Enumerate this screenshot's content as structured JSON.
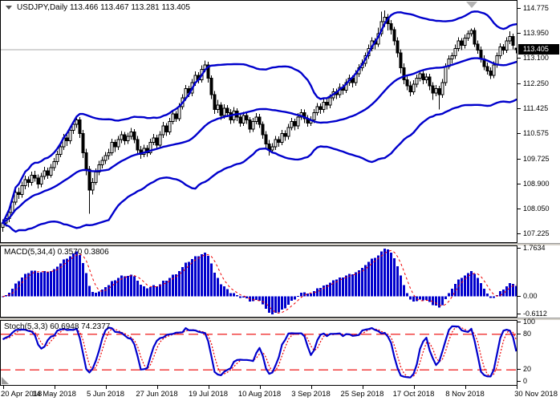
{
  "window": {
    "title": "USDJPY,Daily 113.466 113.467 113.281 113.405",
    "symbol": "USDJPY",
    "timeframe": "Daily",
    "ohlc_display": {
      "open": "113.466",
      "high": "113.467",
      "low": "113.281",
      "close": "113.405"
    }
  },
  "main_chart": {
    "price_axis": {
      "labels": [
        "114.775",
        "113.950",
        "113.100",
        "112.250",
        "111.425",
        "110.575",
        "109.725",
        "108.900",
        "108.050",
        "107.225"
      ],
      "current": "113.405",
      "current_value": 113.405,
      "top_value": 115.05,
      "bottom_value": 106.95
    },
    "colors": {
      "bollinger": "#0000cc",
      "bull_body": "#ffffff",
      "bear_body": "#000000",
      "outline": "#000000",
      "price_line": "#a8a8a8"
    }
  },
  "indicators": {
    "macd": {
      "label": "MACD(5,34,4) 0.3570 0.3806",
      "fast": 5,
      "slow": 34,
      "signal": 4,
      "axis_labels": {
        "max": "1.7634",
        "zero": "0.00",
        "min": "-0.6112"
      },
      "histogram_color": "#0000cc",
      "signal_color": "#ee0000"
    },
    "stoch": {
      "label": "Stoch(5,3,3) 60.6948 74.2377",
      "k_period": 5,
      "slowing": 3,
      "d_period": 3,
      "axis_labels": [
        {
          "text": "100",
          "value": 100
        },
        {
          "text": "80",
          "value": 80
        },
        {
          "text": "20",
          "value": 20
        },
        {
          "text": "0",
          "value": 0
        }
      ],
      "levels": [
        80,
        20
      ],
      "k_color": "#0000cc",
      "d_color": "#ee0000",
      "level_color": "#ee0000"
    }
  },
  "time_axis": {
    "labels": [
      "20 Apr 2018",
      "14 May 2018",
      "5 Jun 2018",
      "27 Jun 2018",
      "19 Jul 2018",
      "10 Aug 2018",
      "3 Sep 2018",
      "25 Sep 2018",
      "17 Oct 2018",
      "8 Nov 2018",
      "30 Nov 2018"
    ],
    "tick_indices": [
      0,
      16,
      32,
      48,
      64,
      80,
      96,
      112,
      128,
      144,
      160
    ]
  },
  "chart_data": {
    "type": "candlestick",
    "title": "USDJPY,Daily 113.466 113.467 113.281 113.405",
    "symbol": "USDJPY",
    "timeframe": "Daily",
    "ylim": [
      106.95,
      115.05
    ],
    "x_tick_labels": [
      "20 Apr 2018",
      "14 May 2018",
      "5 Jun 2018",
      "27 Jun 2018",
      "19 Jul 2018",
      "10 Aug 2018",
      "3 Sep 2018",
      "25 Sep 2018",
      "17 Oct 2018",
      "8 Nov 2018",
      "30 Nov 2018"
    ],
    "overlays": [
      {
        "name": "Bollinger Bands",
        "period": 34,
        "deviation": 2,
        "color": "#0000cc"
      }
    ],
    "panels": [
      {
        "name": "MACD",
        "type": "macd",
        "params": [
          5,
          34,
          4
        ],
        "current_values": [
          "0.3570",
          "0.3806"
        ],
        "axis": [
          1.7634,
          0.0,
          -0.6112
        ]
      },
      {
        "name": "Stochastic",
        "type": "stochastic",
        "params": [
          5,
          3,
          3
        ],
        "current_values": [
          "60.6948",
          "74.2377"
        ],
        "axis": [
          100,
          80,
          20,
          0
        ],
        "levels": [
          80,
          20
        ]
      }
    ],
    "candles_ohlc": [
      [
        107.45,
        107.72,
        107.3,
        107.6
      ],
      [
        107.6,
        107.88,
        107.48,
        107.75
      ],
      [
        107.75,
        108.1,
        107.62,
        107.95
      ],
      [
        107.95,
        108.42,
        107.85,
        108.3
      ],
      [
        108.3,
        108.75,
        108.2,
        108.62
      ],
      [
        108.62,
        108.78,
        108.4,
        108.55
      ],
      [
        108.55,
        108.98,
        108.45,
        108.85
      ],
      [
        108.85,
        109.18,
        108.72,
        109.05
      ],
      [
        109.05,
        109.15,
        108.8,
        108.95
      ],
      [
        108.95,
        109.32,
        108.85,
        109.2
      ],
      [
        109.2,
        109.35,
        108.98,
        109.1
      ],
      [
        109.1,
        109.22,
        108.75,
        108.9
      ],
      [
        108.9,
        109.28,
        108.8,
        109.15
      ],
      [
        109.15,
        109.48,
        109.05,
        109.35
      ],
      [
        109.35,
        109.45,
        109.08,
        109.2
      ],
      [
        109.2,
        109.58,
        109.12,
        109.45
      ],
      [
        109.45,
        109.78,
        109.35,
        109.65
      ],
      [
        109.65,
        110.02,
        109.55,
        109.9
      ],
      [
        109.9,
        110.28,
        109.8,
        110.15
      ],
      [
        110.15,
        110.58,
        110.05,
        110.45
      ],
      [
        110.45,
        110.55,
        110.18,
        110.35
      ],
      [
        110.35,
        110.82,
        110.25,
        110.7
      ],
      [
        110.7,
        111.02,
        110.58,
        110.9
      ],
      [
        110.9,
        111.18,
        110.78,
        111.05
      ],
      [
        111.05,
        111.15,
        110.45,
        110.6
      ],
      [
        110.6,
        110.72,
        109.78,
        109.95
      ],
      [
        109.95,
        110.08,
        109.2,
        109.4
      ],
      [
        109.4,
        109.5,
        107.9,
        108.7
      ],
      [
        108.7,
        109.1,
        108.55,
        108.95
      ],
      [
        108.95,
        109.42,
        108.88,
        109.3
      ],
      [
        109.3,
        109.68,
        109.2,
        109.55
      ],
      [
        109.55,
        109.82,
        109.42,
        109.7
      ],
      [
        109.7,
        109.98,
        109.58,
        109.85
      ],
      [
        109.85,
        110.08,
        109.72,
        109.95
      ],
      [
        109.95,
        110.42,
        109.85,
        110.3
      ],
      [
        110.3,
        110.4,
        109.98,
        110.15
      ],
      [
        110.15,
        110.52,
        110.05,
        110.4
      ],
      [
        110.4,
        110.68,
        110.28,
        110.55
      ],
      [
        110.55,
        110.65,
        110.22,
        110.35
      ],
      [
        110.35,
        110.62,
        110.25,
        110.5
      ],
      [
        110.5,
        110.78,
        110.4,
        110.65
      ],
      [
        110.65,
        110.75,
        110.28,
        110.4
      ],
      [
        110.4,
        110.52,
        109.92,
        110.05
      ],
      [
        110.05,
        110.18,
        109.75,
        109.9
      ],
      [
        109.9,
        110.22,
        109.8,
        110.1
      ],
      [
        110.1,
        110.2,
        109.82,
        109.95
      ],
      [
        109.95,
        110.42,
        109.88,
        110.3
      ],
      [
        110.3,
        110.58,
        110.2,
        110.45
      ],
      [
        110.45,
        110.55,
        110.08,
        110.2
      ],
      [
        110.2,
        110.68,
        110.1,
        110.55
      ],
      [
        110.55,
        110.98,
        110.45,
        110.85
      ],
      [
        110.85,
        110.95,
        110.52,
        110.65
      ],
      [
        110.65,
        111.12,
        110.55,
        111.0
      ],
      [
        111.0,
        111.38,
        110.9,
        111.25
      ],
      [
        111.25,
        111.35,
        110.98,
        111.1
      ],
      [
        111.1,
        111.62,
        111.02,
        111.5
      ],
      [
        111.5,
        111.92,
        111.4,
        111.8
      ],
      [
        111.8,
        112.22,
        111.7,
        112.1
      ],
      [
        112.1,
        112.2,
        111.82,
        111.95
      ],
      [
        111.95,
        112.42,
        111.85,
        112.3
      ],
      [
        112.3,
        112.68,
        112.2,
        112.55
      ],
      [
        112.55,
        112.65,
        112.28,
        112.4
      ],
      [
        112.4,
        112.88,
        112.3,
        112.75
      ],
      [
        112.75,
        113.05,
        112.65,
        112.9
      ],
      [
        112.9,
        113.0,
        112.3,
        112.45
      ],
      [
        112.45,
        112.55,
        111.75,
        111.9
      ],
      [
        111.9,
        112.02,
        111.25,
        111.4
      ],
      [
        111.4,
        111.72,
        111.28,
        111.55
      ],
      [
        111.55,
        111.65,
        111.05,
        111.2
      ],
      [
        111.2,
        111.58,
        111.1,
        111.45
      ],
      [
        111.45,
        111.55,
        111.15,
        111.3
      ],
      [
        111.3,
        111.42,
        110.92,
        111.05
      ],
      [
        111.05,
        111.48,
        110.95,
        111.35
      ],
      [
        111.35,
        111.45,
        111.02,
        111.15
      ],
      [
        111.15,
        111.25,
        110.82,
        110.95
      ],
      [
        110.95,
        111.32,
        110.85,
        111.2
      ],
      [
        111.2,
        111.3,
        110.92,
        111.05
      ],
      [
        111.05,
        111.15,
        110.62,
        110.75
      ],
      [
        110.75,
        111.12,
        110.65,
        111.0
      ],
      [
        111.0,
        111.28,
        110.9,
        111.15
      ],
      [
        111.15,
        111.25,
        110.78,
        110.9
      ],
      [
        110.9,
        111.0,
        110.42,
        110.55
      ],
      [
        110.55,
        110.68,
        110.12,
        110.25
      ],
      [
        110.25,
        110.38,
        109.85,
        110.05
      ],
      [
        110.05,
        110.28,
        109.95,
        110.15
      ],
      [
        110.15,
        110.52,
        110.05,
        110.4
      ],
      [
        110.4,
        110.5,
        110.15,
        110.3
      ],
      [
        110.3,
        110.72,
        110.2,
        110.6
      ],
      [
        110.6,
        110.7,
        110.35,
        110.5
      ],
      [
        110.5,
        110.92,
        110.4,
        110.8
      ],
      [
        110.8,
        111.12,
        110.7,
        111.0
      ],
      [
        111.0,
        111.1,
        110.7,
        110.85
      ],
      [
        110.85,
        111.28,
        110.75,
        111.15
      ],
      [
        111.15,
        111.42,
        111.05,
        111.3
      ],
      [
        111.3,
        111.4,
        110.95,
        111.1
      ],
      [
        111.1,
        111.22,
        110.82,
        110.95
      ],
      [
        110.95,
        111.18,
        110.85,
        111.05
      ],
      [
        111.05,
        111.42,
        110.95,
        111.3
      ],
      [
        111.3,
        111.62,
        111.2,
        111.5
      ],
      [
        111.5,
        111.6,
        111.25,
        111.4
      ],
      [
        111.4,
        111.78,
        111.3,
        111.65
      ],
      [
        111.65,
        111.75,
        111.4,
        111.55
      ],
      [
        111.55,
        111.92,
        111.45,
        111.8
      ],
      [
        111.8,
        112.12,
        111.7,
        112.0
      ],
      [
        112.0,
        112.1,
        111.75,
        111.9
      ],
      [
        111.9,
        112.28,
        111.8,
        112.15
      ],
      [
        112.15,
        112.25,
        111.9,
        112.05
      ],
      [
        112.05,
        112.42,
        111.95,
        112.3
      ],
      [
        112.3,
        112.58,
        112.2,
        112.45
      ],
      [
        112.45,
        112.55,
        112.15,
        112.3
      ],
      [
        112.3,
        112.72,
        112.2,
        112.6
      ],
      [
        112.6,
        112.92,
        112.5,
        112.8
      ],
      [
        112.8,
        113.08,
        112.7,
        112.95
      ],
      [
        112.95,
        113.32,
        112.85,
        113.2
      ],
      [
        113.2,
        113.58,
        113.1,
        113.45
      ],
      [
        113.45,
        113.82,
        113.35,
        113.7
      ],
      [
        113.7,
        113.8,
        113.42,
        113.6
      ],
      [
        113.6,
        114.15,
        113.5,
        113.95
      ],
      [
        113.95,
        114.68,
        113.85,
        114.35
      ],
      [
        114.35,
        114.73,
        114.18,
        114.5
      ],
      [
        114.5,
        114.6,
        114.05,
        114.28
      ],
      [
        114.28,
        114.4,
        113.92,
        114.08
      ],
      [
        114.08,
        114.18,
        113.55,
        113.7
      ],
      [
        113.7,
        113.82,
        113.15,
        113.3
      ],
      [
        113.3,
        113.42,
        112.62,
        112.8
      ],
      [
        112.8,
        112.95,
        112.25,
        112.4
      ],
      [
        112.4,
        112.55,
        112.05,
        112.2
      ],
      [
        112.2,
        112.35,
        111.85,
        112.0
      ],
      [
        112.0,
        112.38,
        111.9,
        112.25
      ],
      [
        112.25,
        112.58,
        112.15,
        112.45
      ],
      [
        112.45,
        112.72,
        112.35,
        112.6
      ],
      [
        112.6,
        112.7,
        112.25,
        112.4
      ],
      [
        112.4,
        112.62,
        112.28,
        112.5
      ],
      [
        112.5,
        112.6,
        112.05,
        112.2
      ],
      [
        112.2,
        112.32,
        111.72,
        111.95
      ],
      [
        111.95,
        112.22,
        111.85,
        112.1
      ],
      [
        112.1,
        112.2,
        111.4,
        111.9
      ],
      [
        111.9,
        112.42,
        111.8,
        112.3
      ],
      [
        112.3,
        112.95,
        112.2,
        112.85
      ],
      [
        112.85,
        113.22,
        112.75,
        113.1
      ],
      [
        113.1,
        113.32,
        112.95,
        113.2
      ],
      [
        113.2,
        113.58,
        113.1,
        113.45
      ],
      [
        113.45,
        113.82,
        113.35,
        113.7
      ],
      [
        113.7,
        113.8,
        113.4,
        113.55
      ],
      [
        113.55,
        113.92,
        113.45,
        113.8
      ],
      [
        113.8,
        114.05,
        113.7,
        113.95
      ],
      [
        113.95,
        114.12,
        113.85,
        114.05
      ],
      [
        114.05,
        114.15,
        113.5,
        113.6
      ],
      [
        113.6,
        113.72,
        113.28,
        113.4
      ],
      [
        113.4,
        113.52,
        112.98,
        113.1
      ],
      [
        113.1,
        113.22,
        112.72,
        112.85
      ],
      [
        112.85,
        112.98,
        112.58,
        112.7
      ],
      [
        112.7,
        112.82,
        112.42,
        112.55
      ],
      [
        112.55,
        113.02,
        112.45,
        112.9
      ],
      [
        112.9,
        113.32,
        112.8,
        113.2
      ],
      [
        113.2,
        113.62,
        113.1,
        113.5
      ],
      [
        113.5,
        113.6,
        113.25,
        113.4
      ],
      [
        113.4,
        113.82,
        113.3,
        113.7
      ],
      [
        113.7,
        114.03,
        113.6,
        113.85
      ],
      [
        113.85,
        113.95,
        113.42,
        113.55
      ],
      [
        113.466,
        113.467,
        113.281,
        113.405
      ]
    ]
  }
}
